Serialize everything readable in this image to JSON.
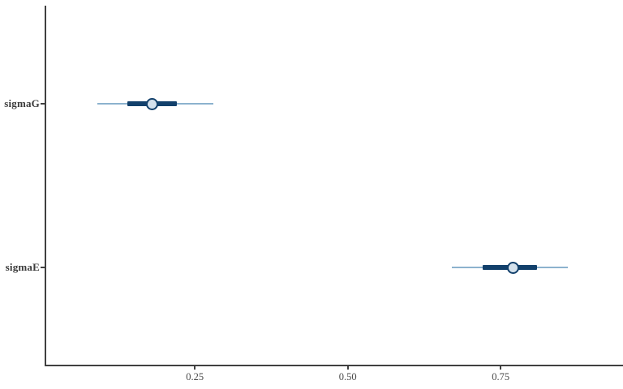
{
  "chart_data": {
    "type": "scatter",
    "plot_style": "mcmc_intervals: horizontal point estimates with inner (thick) and outer (thin) credible intervals",
    "orientation": "horizontal",
    "title": "",
    "xlabel": "",
    "ylabel": "",
    "grid": "off",
    "legend": "none",
    "categories": [
      "sigmaG",
      "sigmaE"
    ],
    "parameters": [
      {
        "name": "sigmaG",
        "point": 0.18,
        "inner_interval": [
          0.14,
          0.22
        ],
        "outer_interval": [
          0.09,
          0.28
        ]
      },
      {
        "name": "sigmaE",
        "point": 0.77,
        "inner_interval": [
          0.72,
          0.81
        ],
        "outer_interval": [
          0.67,
          0.86
        ]
      }
    ],
    "x_axis": {
      "min": 0.007,
      "max": 0.95,
      "ticks": [
        0.25,
        0.5,
        0.75
      ],
      "tick_labels": [
        "0.25",
        "0.50",
        "0.75"
      ]
    },
    "colors": {
      "outer_interval": "#8cb2ce",
      "inner_interval": "#12406b",
      "point_fill": "#d4e1ec",
      "point_stroke": "#12406b",
      "axis_line": "#404040",
      "tick_text": "#4a4a4a",
      "category_text": "#3b3b3b",
      "background": "#ffffff"
    }
  }
}
